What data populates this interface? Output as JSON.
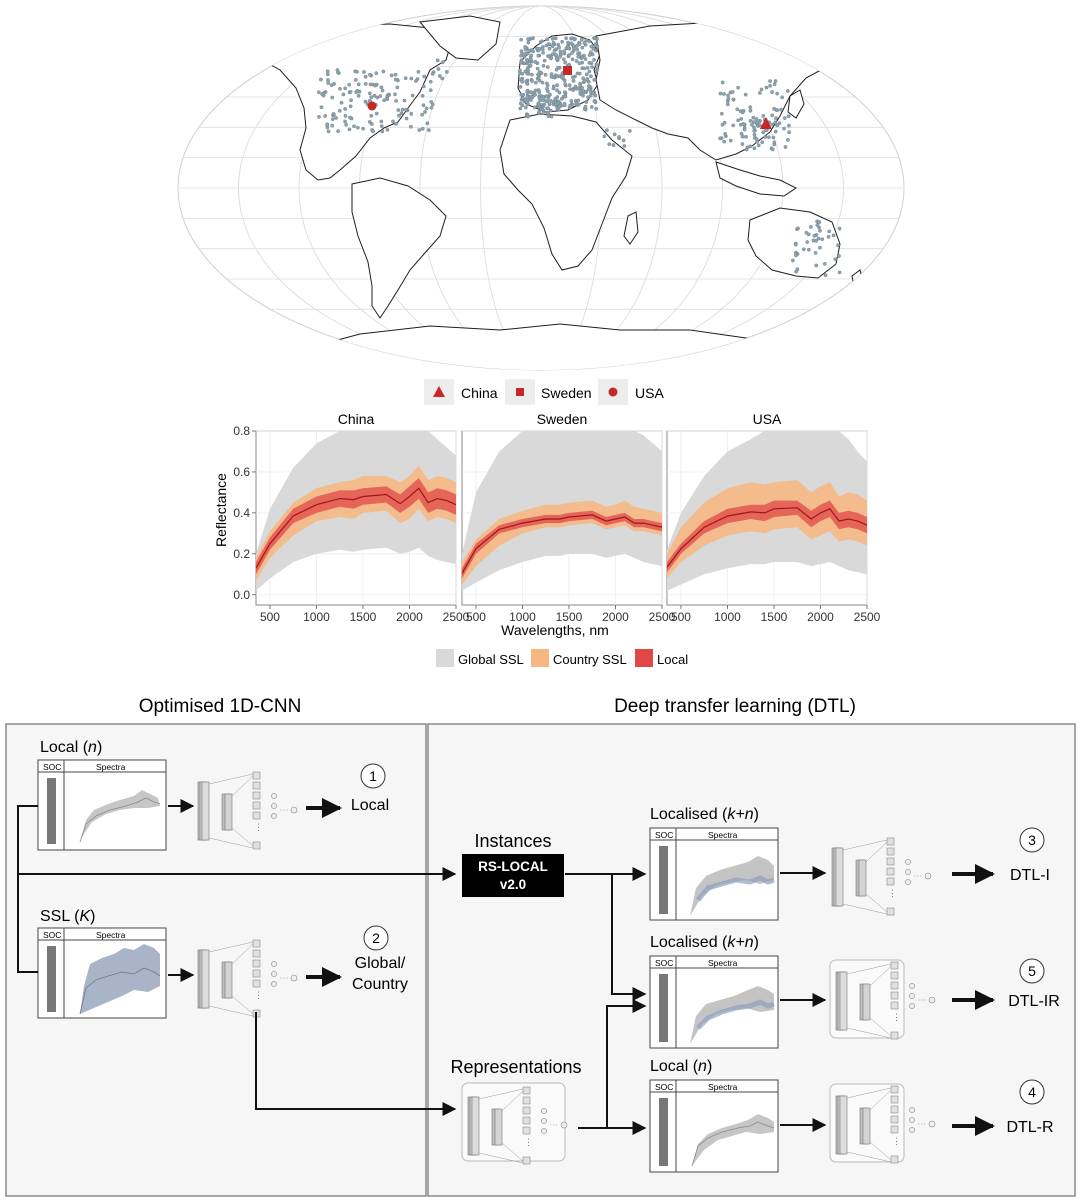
{
  "map": {
    "legend": [
      {
        "label": "China",
        "marker": "triangle"
      },
      {
        "label": "Sweden",
        "marker": "square"
      },
      {
        "label": "USA",
        "marker": "circle"
      }
    ],
    "colors": {
      "samples": "#8ea3ad",
      "marker": "#c62828",
      "land": "#ffffff",
      "border": "#222222",
      "graticule": "#dddddd"
    }
  },
  "chart_data": {
    "type": "area",
    "ylabel": "Reflectance",
    "xlabel": "Wavelengths, nm",
    "xlim": [
      350,
      2500
    ],
    "ylim": [
      -0.05,
      0.8
    ],
    "x_ticks": [
      "500",
      "1000",
      "1500",
      "2000",
      "2500"
    ],
    "y_ticks": [
      "0.0",
      "0.2",
      "0.4",
      "0.6",
      "0.8"
    ],
    "x": [
      350,
      500,
      750,
      1000,
      1250,
      1400,
      1500,
      1750,
      1900,
      2000,
      2100,
      2200,
      2300,
      2400,
      2500
    ],
    "legend": [
      {
        "label": "Global SSL",
        "color": "#d9d9d9"
      },
      {
        "label": "Country SSL",
        "color": "#f6b783"
      },
      {
        "label": "Local",
        "color": "#e04848"
      }
    ],
    "panels": [
      {
        "title": "China",
        "global": {
          "lower": [
            0.02,
            0.08,
            0.16,
            0.2,
            0.22,
            0.21,
            0.22,
            0.23,
            0.2,
            0.21,
            0.23,
            0.19,
            0.17,
            0.16,
            0.15
          ],
          "upper": [
            0.2,
            0.42,
            0.62,
            0.74,
            0.8,
            0.8,
            0.8,
            0.8,
            0.8,
            0.8,
            0.8,
            0.8,
            0.76,
            0.72,
            0.68
          ]
        },
        "country": {
          "lower": [
            0.07,
            0.18,
            0.29,
            0.36,
            0.38,
            0.37,
            0.4,
            0.41,
            0.35,
            0.37,
            0.42,
            0.36,
            0.38,
            0.37,
            0.35
          ],
          "upper": [
            0.18,
            0.31,
            0.45,
            0.52,
            0.55,
            0.56,
            0.58,
            0.58,
            0.55,
            0.58,
            0.63,
            0.56,
            0.58,
            0.57,
            0.55
          ]
        },
        "local": {
          "lower": [
            0.1,
            0.22,
            0.35,
            0.4,
            0.43,
            0.42,
            0.44,
            0.45,
            0.4,
            0.43,
            0.47,
            0.4,
            0.42,
            0.41,
            0.39
          ],
          "upper": [
            0.16,
            0.28,
            0.42,
            0.48,
            0.51,
            0.51,
            0.52,
            0.53,
            0.49,
            0.53,
            0.57,
            0.5,
            0.52,
            0.51,
            0.49
          ],
          "mean": [
            0.13,
            0.25,
            0.385,
            0.44,
            0.47,
            0.465,
            0.48,
            0.49,
            0.445,
            0.48,
            0.52,
            0.45,
            0.47,
            0.46,
            0.44
          ]
        }
      },
      {
        "title": "Sweden",
        "global": {
          "lower": [
            0.02,
            0.06,
            0.12,
            0.16,
            0.19,
            0.19,
            0.2,
            0.2,
            0.18,
            0.19,
            0.2,
            0.18,
            0.16,
            0.15,
            0.14
          ],
          "upper": [
            0.2,
            0.5,
            0.7,
            0.8,
            0.8,
            0.8,
            0.8,
            0.8,
            0.8,
            0.8,
            0.8,
            0.8,
            0.78,
            0.74,
            0.7
          ]
        },
        "country": {
          "lower": [
            0.05,
            0.14,
            0.24,
            0.3,
            0.33,
            0.33,
            0.34,
            0.35,
            0.32,
            0.33,
            0.34,
            0.31,
            0.31,
            0.3,
            0.29
          ],
          "upper": [
            0.16,
            0.27,
            0.37,
            0.41,
            0.44,
            0.44,
            0.45,
            0.46,
            0.43,
            0.44,
            0.46,
            0.43,
            0.42,
            0.41,
            0.4
          ]
        },
        "local": {
          "lower": [
            0.08,
            0.2,
            0.3,
            0.33,
            0.35,
            0.35,
            0.36,
            0.37,
            0.34,
            0.35,
            0.36,
            0.33,
            0.33,
            0.32,
            0.31
          ],
          "upper": [
            0.13,
            0.25,
            0.34,
            0.37,
            0.39,
            0.39,
            0.4,
            0.41,
            0.38,
            0.39,
            0.4,
            0.37,
            0.37,
            0.36,
            0.35
          ],
          "mean": [
            0.105,
            0.225,
            0.32,
            0.35,
            0.37,
            0.37,
            0.38,
            0.39,
            0.36,
            0.37,
            0.38,
            0.35,
            0.35,
            0.34,
            0.33
          ]
        }
      },
      {
        "title": "USA",
        "global": {
          "lower": [
            0.02,
            0.05,
            0.1,
            0.13,
            0.15,
            0.15,
            0.16,
            0.16,
            0.14,
            0.15,
            0.16,
            0.14,
            0.12,
            0.11,
            0.1
          ],
          "upper": [
            0.22,
            0.4,
            0.58,
            0.7,
            0.76,
            0.8,
            0.8,
            0.8,
            0.8,
            0.8,
            0.8,
            0.8,
            0.76,
            0.7,
            0.65
          ]
        },
        "country": {
          "lower": [
            0.08,
            0.16,
            0.24,
            0.29,
            0.31,
            0.3,
            0.32,
            0.33,
            0.27,
            0.29,
            0.31,
            0.26,
            0.27,
            0.26,
            0.24
          ],
          "upper": [
            0.2,
            0.33,
            0.45,
            0.52,
            0.55,
            0.54,
            0.55,
            0.56,
            0.5,
            0.53,
            0.55,
            0.48,
            0.5,
            0.49,
            0.46
          ]
        },
        "local": {
          "lower": [
            0.11,
            0.2,
            0.3,
            0.35,
            0.37,
            0.36,
            0.38,
            0.39,
            0.33,
            0.36,
            0.38,
            0.32,
            0.33,
            0.32,
            0.3
          ],
          "upper": [
            0.16,
            0.25,
            0.36,
            0.42,
            0.44,
            0.44,
            0.46,
            0.46,
            0.41,
            0.44,
            0.46,
            0.4,
            0.41,
            0.4,
            0.38
          ],
          "mean": [
            0.135,
            0.225,
            0.33,
            0.385,
            0.405,
            0.4,
            0.42,
            0.425,
            0.37,
            0.4,
            0.42,
            0.36,
            0.37,
            0.36,
            0.34
          ]
        }
      }
    ]
  },
  "workflow": {
    "left_title": "Optimised 1D-CNN",
    "right_title": "Deep transfer learning (DTL)",
    "local_label": "Local",
    "local_var": "n",
    "ssl_label": "SSL",
    "ssl_var": "K",
    "soc": "SOC",
    "spectra": "Spectra",
    "instances": "Instances",
    "rs_local_1": "RS-LOCAL",
    "rs_local_2": "v2.0",
    "representations": "Representations",
    "localised_label": "Localised",
    "localised_var": "k+n",
    "outputs": [
      {
        "num": "1",
        "label": "Local"
      },
      {
        "num": "2",
        "label": "Global/",
        "label2": "Country"
      },
      {
        "num": "3",
        "label": "DTL-I"
      },
      {
        "num": "5",
        "label": "DTL-IR"
      },
      {
        "num": "4",
        "label": "DTL-R"
      }
    ]
  }
}
